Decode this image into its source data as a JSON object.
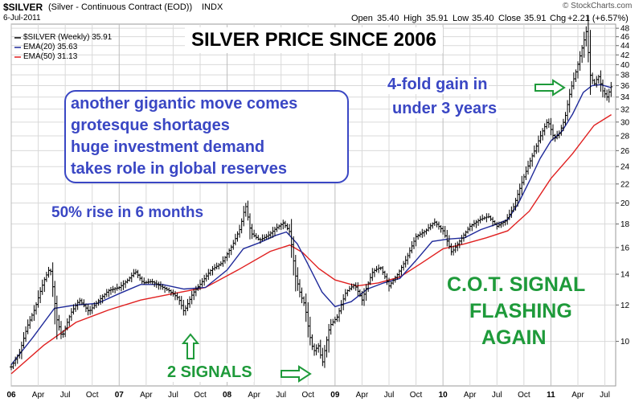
{
  "header": {
    "symbol": "$SILVER",
    "description": "(Silver - Continuous Contract (EOD))",
    "exchange": "INDX",
    "date": "6-Jul-2011",
    "watermark": "© StockCharts.com",
    "quote": {
      "open_label": "Open",
      "open": "35.40",
      "high_label": "High",
      "high": "35.91",
      "low_label": "Low",
      "low": "35.40",
      "close_label": "Close",
      "close": "35.91",
      "chg_label": "Chg",
      "chg": "+2.21 (+6.57%)"
    }
  },
  "legend": {
    "main": "$SILVER (Weekly) 35.91",
    "ema20": "EMA(20) 35.63",
    "ema50": "EMA(50) 31.13"
  },
  "annotations": {
    "title": "SILVER PRICE SINCE 2006",
    "callout_lines": [
      "another gigantic move comes",
      "grotesque shortages",
      "huge investment demand",
      "takes role in global reserves"
    ],
    "rise": "50% rise in 6 months",
    "fourfold_line1": "4-fold gain in",
    "fourfold_line2": "under 3 years",
    "cot_line1": "C.O.T. SIGNAL",
    "cot_line2": "FLASHING",
    "cot_line3": "AGAIN",
    "signals": "2 SIGNALS"
  },
  "colors": {
    "price_bars": "#000000",
    "ema20": "#1f2a9a",
    "ema50": "#e02020",
    "blue_text": "#3a47c4",
    "green_text": "#1e9a3a",
    "grid": "#d9d9d9"
  },
  "chart_data": {
    "type": "line",
    "title": "SILVER PRICE SINCE 2006",
    "y_scale": "log",
    "ylim": [
      8,
      49
    ],
    "y_ticks": [
      10,
      12,
      14,
      16,
      18,
      20,
      22,
      24,
      26,
      28,
      30,
      32,
      34,
      36,
      38,
      40,
      42,
      44,
      46,
      48
    ],
    "x_ticks": [
      {
        "t": 2006.0,
        "label": "06"
      },
      {
        "t": 2006.25,
        "label": "Apr"
      },
      {
        "t": 2006.5,
        "label": "Jul"
      },
      {
        "t": 2006.75,
        "label": "Oct"
      },
      {
        "t": 2007.0,
        "label": "07"
      },
      {
        "t": 2007.25,
        "label": "Apr"
      },
      {
        "t": 2007.5,
        "label": "Jul"
      },
      {
        "t": 2007.75,
        "label": "Oct"
      },
      {
        "t": 2008.0,
        "label": "08"
      },
      {
        "t": 2008.25,
        "label": "Apr"
      },
      {
        "t": 2008.5,
        "label": "Jul"
      },
      {
        "t": 2008.75,
        "label": "Oct"
      },
      {
        "t": 2009.0,
        "label": "09"
      },
      {
        "t": 2009.25,
        "label": "Apr"
      },
      {
        "t": 2009.5,
        "label": "Jul"
      },
      {
        "t": 2009.75,
        "label": "Oct"
      },
      {
        "t": 2010.0,
        "label": "10"
      },
      {
        "t": 2010.25,
        "label": "Apr"
      },
      {
        "t": 2010.5,
        "label": "Jul"
      },
      {
        "t": 2010.75,
        "label": "Oct"
      },
      {
        "t": 2011.0,
        "label": "11"
      },
      {
        "t": 2011.25,
        "label": "Apr"
      },
      {
        "t": 2011.5,
        "label": "Jul"
      }
    ],
    "x_range": [
      2006.0,
      2011.56
    ],
    "grid": true,
    "series": [
      {
        "name": "$SILVER (Weekly)",
        "style": "bars",
        "points": [
          [
            2006.0,
            8.8
          ],
          [
            2006.08,
            9.5
          ],
          [
            2006.15,
            10.8
          ],
          [
            2006.22,
            11.8
          ],
          [
            2006.3,
            13.5
          ],
          [
            2006.36,
            14.5
          ],
          [
            2006.42,
            11.2
          ],
          [
            2006.47,
            10.2
          ],
          [
            2006.55,
            11.5
          ],
          [
            2006.63,
            12.3
          ],
          [
            2006.72,
            11.6
          ],
          [
            2006.8,
            12.2
          ],
          [
            2006.9,
            12.9
          ],
          [
            2007.0,
            13.1
          ],
          [
            2007.08,
            13.6
          ],
          [
            2007.15,
            14.2
          ],
          [
            2007.22,
            13.4
          ],
          [
            2007.3,
            13.5
          ],
          [
            2007.38,
            13.2
          ],
          [
            2007.46,
            12.9
          ],
          [
            2007.55,
            12.4
          ],
          [
            2007.6,
            11.6
          ],
          [
            2007.68,
            12.7
          ],
          [
            2007.76,
            13.4
          ],
          [
            2007.85,
            14.3
          ],
          [
            2007.95,
            14.8
          ],
          [
            2008.05,
            16.2
          ],
          [
            2008.12,
            17.6
          ],
          [
            2008.17,
            19.8
          ],
          [
            2008.22,
            17.2
          ],
          [
            2008.3,
            16.6
          ],
          [
            2008.38,
            17.0
          ],
          [
            2008.45,
            17.6
          ],
          [
            2008.52,
            18.1
          ],
          [
            2008.58,
            17.3
          ],
          [
            2008.63,
            14.0
          ],
          [
            2008.68,
            12.6
          ],
          [
            2008.72,
            12.0
          ],
          [
            2008.76,
            10.4
          ],
          [
            2008.8,
            9.5
          ],
          [
            2008.85,
            9.8
          ],
          [
            2008.88,
            8.9
          ],
          [
            2008.95,
            10.8
          ],
          [
            2009.02,
            11.3
          ],
          [
            2009.1,
            12.8
          ],
          [
            2009.18,
            13.3
          ],
          [
            2009.25,
            12.3
          ],
          [
            2009.35,
            14.2
          ],
          [
            2009.42,
            14.5
          ],
          [
            2009.5,
            13.2
          ],
          [
            2009.58,
            14.0
          ],
          [
            2009.66,
            15.1
          ],
          [
            2009.75,
            16.9
          ],
          [
            2009.84,
            17.4
          ],
          [
            2009.92,
            18.2
          ],
          [
            2010.0,
            17.4
          ],
          [
            2010.08,
            15.6
          ],
          [
            2010.16,
            16.6
          ],
          [
            2010.25,
            17.8
          ],
          [
            2010.34,
            18.4
          ],
          [
            2010.42,
            18.7
          ],
          [
            2010.5,
            17.8
          ],
          [
            2010.58,
            18.3
          ],
          [
            2010.65,
            19.5
          ],
          [
            2010.72,
            21.8
          ],
          [
            2010.78,
            23.8
          ],
          [
            2010.86,
            26.4
          ],
          [
            2010.92,
            28.6
          ],
          [
            2010.97,
            30.2
          ],
          [
            2011.03,
            27.6
          ],
          [
            2011.08,
            28.4
          ],
          [
            2011.13,
            30.6
          ],
          [
            2011.18,
            35.1
          ],
          [
            2011.24,
            39.2
          ],
          [
            2011.3,
            44.5
          ],
          [
            2011.33,
            47.5
          ],
          [
            2011.36,
            38.2
          ],
          [
            2011.4,
            36.2
          ],
          [
            2011.44,
            37.8
          ],
          [
            2011.48,
            35.1
          ],
          [
            2011.52,
            34.0
          ],
          [
            2011.56,
            35.91
          ]
        ]
      },
      {
        "name": "EMA(20)",
        "style": "line",
        "points": [
          [
            2006.0,
            8.9
          ],
          [
            2006.2,
            10.2
          ],
          [
            2006.4,
            11.8
          ],
          [
            2006.6,
            12.0
          ],
          [
            2006.8,
            12.1
          ],
          [
            2007.0,
            12.7
          ],
          [
            2007.2,
            13.3
          ],
          [
            2007.4,
            13.3
          ],
          [
            2007.6,
            13.0
          ],
          [
            2007.8,
            13.1
          ],
          [
            2008.0,
            14.3
          ],
          [
            2008.15,
            15.9
          ],
          [
            2008.3,
            16.4
          ],
          [
            2008.45,
            17.0
          ],
          [
            2008.55,
            17.3
          ],
          [
            2008.65,
            16.3
          ],
          [
            2008.75,
            14.7
          ],
          [
            2008.88,
            12.8
          ],
          [
            2009.0,
            11.9
          ],
          [
            2009.15,
            12.2
          ],
          [
            2009.3,
            13.0
          ],
          [
            2009.45,
            13.4
          ],
          [
            2009.6,
            13.7
          ],
          [
            2009.75,
            15.0
          ],
          [
            2009.9,
            16.5
          ],
          [
            2010.05,
            16.7
          ],
          [
            2010.2,
            16.8
          ],
          [
            2010.35,
            17.5
          ],
          [
            2010.5,
            18.0
          ],
          [
            2010.6,
            18.4
          ],
          [
            2010.7,
            20.0
          ],
          [
            2010.8,
            22.3
          ],
          [
            2010.9,
            25.0
          ],
          [
            2011.0,
            27.3
          ],
          [
            2011.1,
            28.6
          ],
          [
            2011.2,
            31.2
          ],
          [
            2011.3,
            34.8
          ],
          [
            2011.38,
            36.0
          ],
          [
            2011.46,
            36.2
          ],
          [
            2011.56,
            35.63
          ]
        ]
      },
      {
        "name": "EMA(50)",
        "style": "line",
        "points": [
          [
            2006.0,
            8.5
          ],
          [
            2006.3,
            9.8
          ],
          [
            2006.6,
            11.0
          ],
          [
            2006.9,
            11.7
          ],
          [
            2007.2,
            12.3
          ],
          [
            2007.5,
            12.7
          ],
          [
            2007.8,
            13.1
          ],
          [
            2008.1,
            14.3
          ],
          [
            2008.4,
            15.7
          ],
          [
            2008.58,
            16.2
          ],
          [
            2008.7,
            15.6
          ],
          [
            2008.85,
            14.4
          ],
          [
            2009.0,
            13.6
          ],
          [
            2009.2,
            13.2
          ],
          [
            2009.4,
            13.4
          ],
          [
            2009.6,
            13.8
          ],
          [
            2009.8,
            14.8
          ],
          [
            2010.0,
            15.9
          ],
          [
            2010.2,
            16.3
          ],
          [
            2010.4,
            16.8
          ],
          [
            2010.6,
            17.4
          ],
          [
            2010.8,
            19.2
          ],
          [
            2011.0,
            22.6
          ],
          [
            2011.2,
            25.6
          ],
          [
            2011.4,
            29.5
          ],
          [
            2011.56,
            31.13
          ]
        ]
      }
    ]
  }
}
